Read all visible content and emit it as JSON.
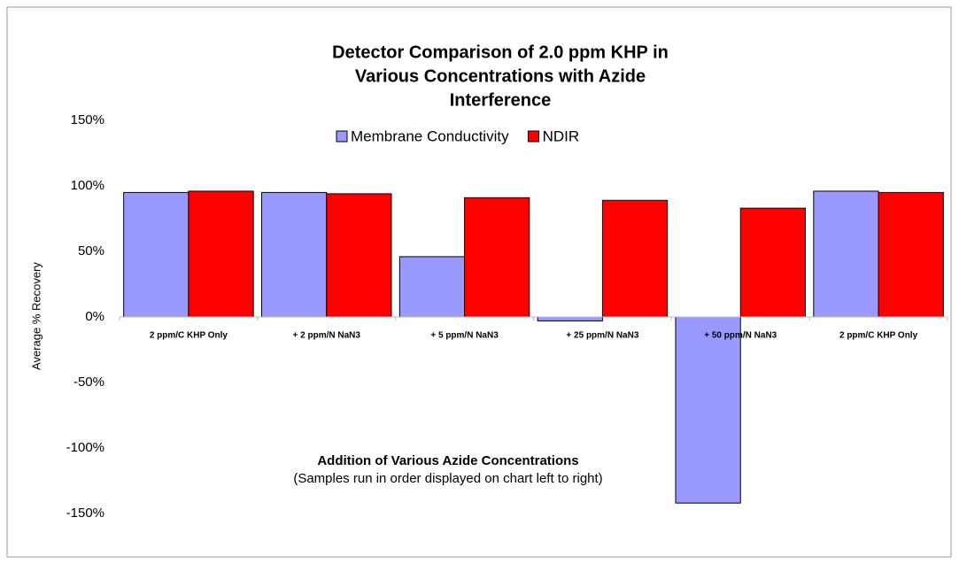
{
  "chart_data": {
    "type": "bar",
    "title_lines": [
      "Detector Comparison of 2.0 ppm KHP in",
      "Various Concentrations with Azide",
      "Interference"
    ],
    "x_label": "Addition of Various Azide Concentrations",
    "x_sublabel": "(Samples run in order displayed on chart left to right)",
    "y_label": "Average % Recovery",
    "categories": [
      "2 ppm/C KHP Only",
      "+ 2 ppm/N NaN3",
      "+ 5 ppm/N NaN3",
      "+ 25 ppm/N NaN3",
      "+ 50 ppm/N NaN3",
      "2 ppm/C KHP Only"
    ],
    "series": [
      {
        "name": "Membrane Conductivity",
        "color": "#9999ff",
        "values": [
          95,
          95,
          46,
          -3,
          -142,
          96
        ]
      },
      {
        "name": "NDIR",
        "color": "#ff0000",
        "values": [
          96,
          94,
          91,
          89,
          83,
          95
        ]
      }
    ],
    "ylim": [
      -150,
      150
    ],
    "yticks": [
      {
        "value": -150,
        "label": "-150%"
      },
      {
        "value": -100,
        "label": "-100%"
      },
      {
        "value": -50,
        "label": "-50%"
      },
      {
        "value": 0,
        "label": "0%"
      },
      {
        "value": 50,
        "label": "50%"
      },
      {
        "value": 100,
        "label": "100%"
      },
      {
        "value": 150,
        "label": "150%"
      }
    ],
    "grid": false,
    "legend": "top"
  }
}
